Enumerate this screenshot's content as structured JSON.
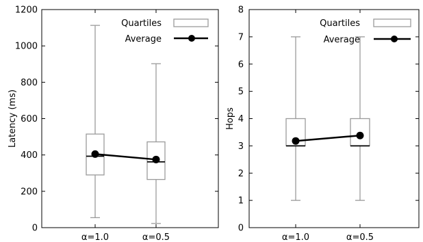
{
  "chart_data": [
    {
      "type": "box",
      "title": "",
      "xlabel": "",
      "ylabel": "Latency (ms)",
      "ylim": [
        0,
        1200
      ],
      "yticks": [
        0,
        200,
        400,
        600,
        800,
        1000,
        1200
      ],
      "categories": [
        "α=1.0",
        "α=0.5"
      ],
      "boxes": [
        {
          "whisker_low": 55,
          "q1": 290,
          "median": 393,
          "q3": 515,
          "whisker_high": 1113
        },
        {
          "whisker_low": 23,
          "q1": 265,
          "median": 362,
          "q3": 472,
          "whisker_high": 902
        }
      ],
      "average": [
        405,
        375
      ],
      "legend": {
        "placement": "top-right",
        "entries": [
          "Quartiles",
          "Average"
        ]
      },
      "grid": false
    },
    {
      "type": "box",
      "title": "",
      "xlabel": "",
      "ylabel": "Hops",
      "ylim": [
        0,
        8
      ],
      "yticks": [
        0,
        1,
        2,
        3,
        4,
        5,
        6,
        7,
        8
      ],
      "categories": [
        "α=1.0",
        "α=0.5"
      ],
      "boxes": [
        {
          "whisker_low": 1,
          "q1": 3,
          "median": 3,
          "q3": 4,
          "whisker_high": 7
        },
        {
          "whisker_low": 1,
          "q1": 3,
          "median": 3,
          "q3": 4,
          "whisker_high": 7
        }
      ],
      "average": [
        3.18,
        3.38
      ],
      "legend": {
        "placement": "top-right",
        "entries": [
          "Quartiles",
          "Average"
        ]
      },
      "grid": false
    }
  ]
}
